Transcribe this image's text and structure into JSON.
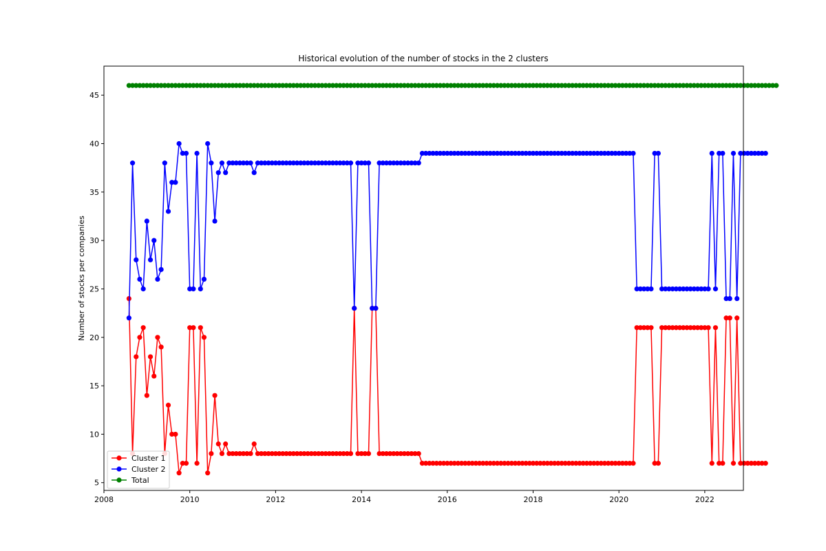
{
  "chart_data": {
    "type": "line",
    "title": "Historical evolution of the number of stocks in the 2 clusters",
    "xlabel": "",
    "ylabel": "Number of stocks per companies",
    "xlim": [
      2008.0,
      2022.9
    ],
    "ylim": [
      4.2,
      48.0
    ],
    "x_ticks": [
      {
        "value": 2008,
        "label": "2008"
      },
      {
        "value": 2010,
        "label": "2010"
      },
      {
        "value": 2012,
        "label": "2012"
      },
      {
        "value": 2014,
        "label": "2014"
      },
      {
        "value": 2016,
        "label": "2016"
      },
      {
        "value": 2018,
        "label": "2018"
      },
      {
        "value": 2020,
        "label": "2020"
      },
      {
        "value": 2022,
        "label": "2022"
      }
    ],
    "y_ticks": [
      {
        "value": 5,
        "label": "5"
      },
      {
        "value": 10,
        "label": "10"
      },
      {
        "value": 15,
        "label": "15"
      },
      {
        "value": 20,
        "label": "20"
      },
      {
        "value": 25,
        "label": "25"
      },
      {
        "value": 30,
        "label": "30"
      },
      {
        "value": 35,
        "label": "35"
      },
      {
        "value": 40,
        "label": "40"
      },
      {
        "value": 45,
        "label": "45"
      }
    ],
    "grid": false,
    "legend_position": "lower-left",
    "x_start": "2008-08",
    "x_step": "1 month",
    "series": [
      {
        "name": "Cluster 1",
        "color": "#ff0000",
        "marker": "circle",
        "values": [
          24,
          8,
          18,
          20,
          21,
          14,
          18,
          16,
          20,
          19,
          8,
          13,
          10,
          10,
          6,
          7,
          7,
          21,
          21,
          7,
          21,
          20,
          6,
          8,
          14,
          9,
          8,
          9,
          8,
          8,
          8,
          8,
          8,
          8,
          8,
          9,
          8,
          8,
          8,
          8,
          8,
          8,
          8,
          8,
          8,
          8,
          8,
          8,
          8,
          8,
          8,
          8,
          8,
          8,
          8,
          8,
          8,
          8,
          8,
          8,
          8,
          8,
          8,
          23,
          8,
          8,
          8,
          8,
          23,
          23,
          8,
          8,
          8,
          8,
          8,
          8,
          8,
          8,
          8,
          8,
          8,
          8,
          7,
          7,
          7,
          7,
          7,
          7,
          7,
          7,
          7,
          7,
          7,
          7,
          7,
          7,
          7,
          7,
          7,
          7,
          7,
          7,
          7,
          7,
          7,
          7,
          7,
          7,
          7,
          7,
          7,
          7,
          7,
          7,
          7,
          7,
          7,
          7,
          7,
          7,
          7,
          7,
          7,
          7,
          7,
          7,
          7,
          7,
          7,
          7,
          7,
          7,
          7,
          7,
          7,
          7,
          7,
          7,
          7,
          7,
          7,
          7,
          21,
          21,
          21,
          21,
          21,
          7,
          7,
          21,
          21,
          21,
          21,
          21,
          21,
          21,
          21,
          21,
          21,
          21,
          21,
          21,
          21,
          7,
          21,
          7,
          7,
          22,
          22,
          7,
          22,
          7,
          7,
          7,
          7,
          7,
          7,
          7,
          7
        ]
      },
      {
        "name": "Cluster 2",
        "color": "#0000ff",
        "marker": "circle",
        "values": [
          22,
          38,
          28,
          26,
          25,
          32,
          28,
          30,
          26,
          27,
          38,
          33,
          36,
          36,
          40,
          39,
          39,
          25,
          25,
          39,
          25,
          26,
          40,
          38,
          32,
          37,
          38,
          37,
          38,
          38,
          38,
          38,
          38,
          38,
          38,
          37,
          38,
          38,
          38,
          38,
          38,
          38,
          38,
          38,
          38,
          38,
          38,
          38,
          38,
          38,
          38,
          38,
          38,
          38,
          38,
          38,
          38,
          38,
          38,
          38,
          38,
          38,
          38,
          23,
          38,
          38,
          38,
          38,
          23,
          23,
          38,
          38,
          38,
          38,
          38,
          38,
          38,
          38,
          38,
          38,
          38,
          38,
          39,
          39,
          39,
          39,
          39,
          39,
          39,
          39,
          39,
          39,
          39,
          39,
          39,
          39,
          39,
          39,
          39,
          39,
          39,
          39,
          39,
          39,
          39,
          39,
          39,
          39,
          39,
          39,
          39,
          39,
          39,
          39,
          39,
          39,
          39,
          39,
          39,
          39,
          39,
          39,
          39,
          39,
          39,
          39,
          39,
          39,
          39,
          39,
          39,
          39,
          39,
          39,
          39,
          39,
          39,
          39,
          39,
          39,
          39,
          39,
          25,
          25,
          25,
          25,
          25,
          39,
          39,
          25,
          25,
          25,
          25,
          25,
          25,
          25,
          25,
          25,
          25,
          25,
          25,
          25,
          25,
          39,
          25,
          39,
          39,
          24,
          24,
          39,
          24,
          39,
          39,
          39,
          39,
          39,
          39,
          39,
          39
        ]
      },
      {
        "name": "Total",
        "color": "#008000",
        "marker": "circle",
        "values": [
          46,
          46,
          46,
          46,
          46,
          46,
          46,
          46,
          46,
          46,
          46,
          46,
          46,
          46,
          46,
          46,
          46,
          46,
          46,
          46,
          46,
          46,
          46,
          46,
          46,
          46,
          46,
          46,
          46,
          46,
          46,
          46,
          46,
          46,
          46,
          46,
          46,
          46,
          46,
          46,
          46,
          46,
          46,
          46,
          46,
          46,
          46,
          46,
          46,
          46,
          46,
          46,
          46,
          46,
          46,
          46,
          46,
          46,
          46,
          46,
          46,
          46,
          46,
          46,
          46,
          46,
          46,
          46,
          46,
          46,
          46,
          46,
          46,
          46,
          46,
          46,
          46,
          46,
          46,
          46,
          46,
          46,
          46,
          46,
          46,
          46,
          46,
          46,
          46,
          46,
          46,
          46,
          46,
          46,
          46,
          46,
          46,
          46,
          46,
          46,
          46,
          46,
          46,
          46,
          46,
          46,
          46,
          46,
          46,
          46,
          46,
          46,
          46,
          46,
          46,
          46,
          46,
          46,
          46,
          46,
          46,
          46,
          46,
          46,
          46,
          46,
          46,
          46,
          46,
          46,
          46,
          46,
          46,
          46,
          46,
          46,
          46,
          46,
          46,
          46,
          46,
          46,
          46,
          46,
          46,
          46,
          46,
          46,
          46,
          46,
          46,
          46,
          46,
          46,
          46,
          46,
          46,
          46,
          46,
          46,
          46,
          46,
          46,
          46,
          46,
          46,
          46,
          46,
          46,
          46,
          46,
          46,
          46,
          46,
          46,
          46,
          46,
          46,
          46,
          46,
          46,
          46
        ]
      }
    ]
  }
}
